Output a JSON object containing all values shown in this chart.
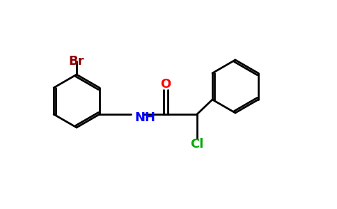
{
  "bg_color": "#ffffff",
  "bond_color": "#000000",
  "bond_width": 2.0,
  "atom_colors": {
    "Br": "#8B0000",
    "O": "#ff0000",
    "N": "#0000ff",
    "Cl": "#00aa00",
    "C": "#000000"
  },
  "font_size": 13,
  "figsize": [
    4.84,
    3.0
  ],
  "dpi": 100
}
